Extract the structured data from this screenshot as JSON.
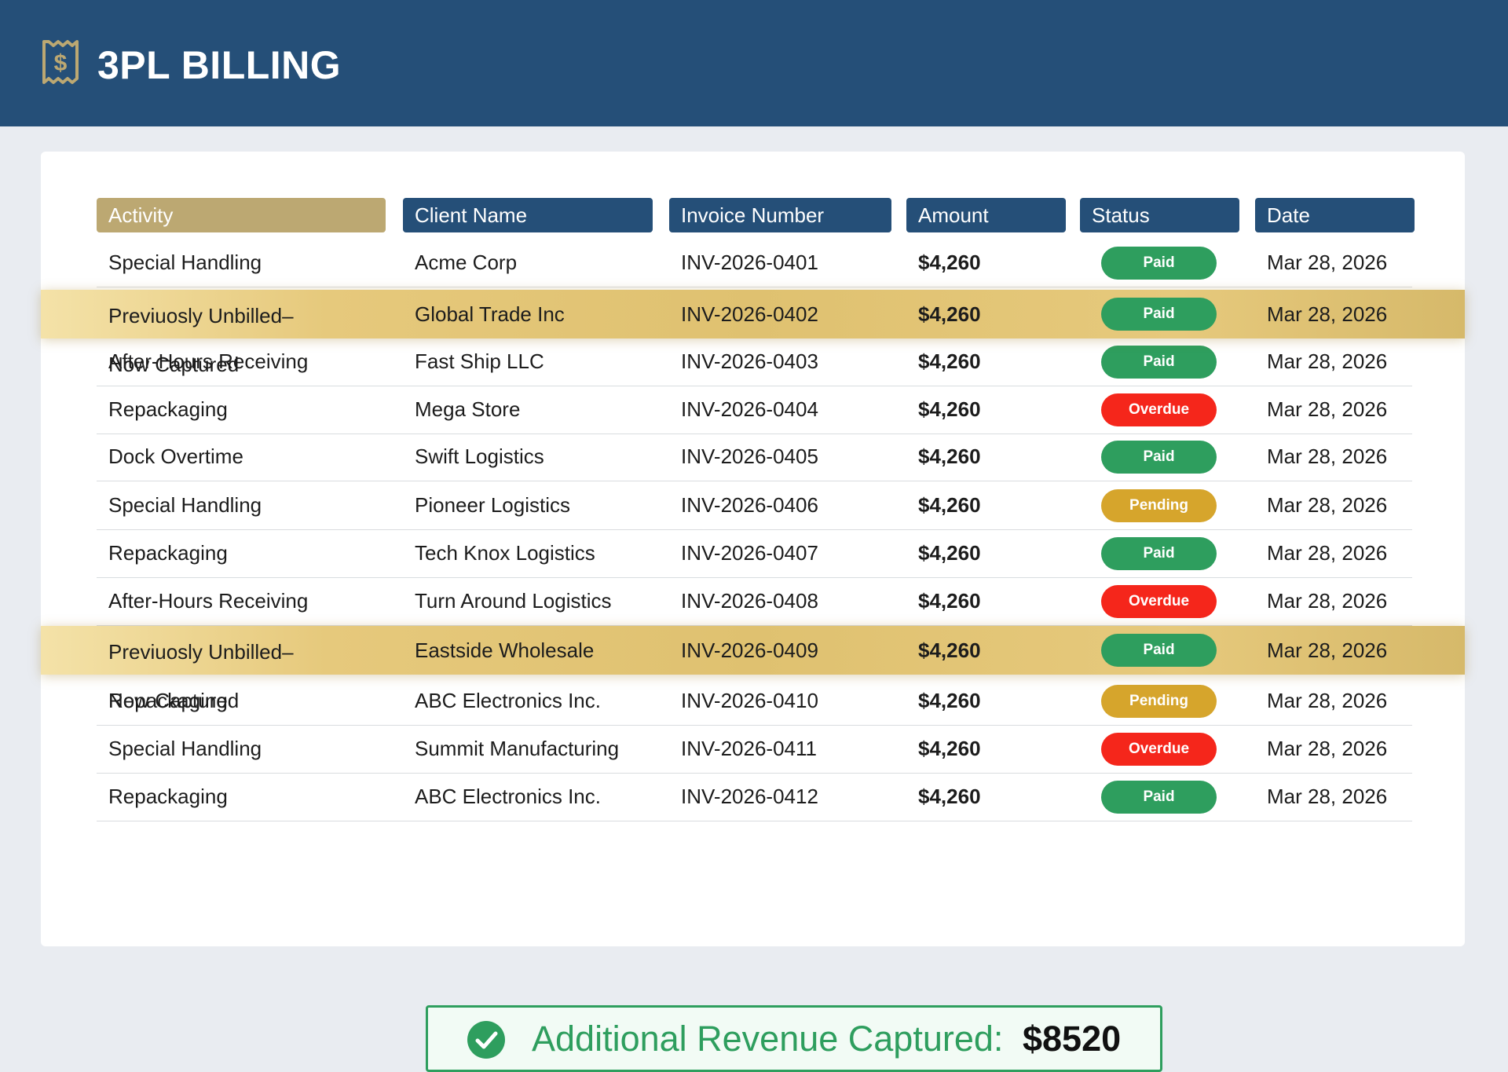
{
  "app": {
    "title": "3PL BILLING",
    "icon": "receipt-dollar-icon"
  },
  "colors": {
    "header_bg": "#254f78",
    "activity_header_bg": "#bca872",
    "highlight_gold": "#dfc170",
    "paid": "#2e9e5e",
    "overdue": "#f5261b",
    "pending": "#d6a52c"
  },
  "table": {
    "headers": [
      "Activity",
      "Client Name",
      "Invoice Number",
      "Amount",
      "Status",
      "Date"
    ],
    "rows": [
      {
        "activity": [
          "Special Handling"
        ],
        "client": "Acme Corp",
        "invoice": "INV-2026-0401",
        "amount": "$4,260",
        "status": "Paid",
        "date": "Mar 28, 2026",
        "highlighted": false
      },
      {
        "activity": [
          "Previuosly Unbilled–",
          "Now Captured"
        ],
        "client": "Global Trade Inc",
        "invoice": "INV-2026-0402",
        "amount": "$4,260",
        "status": "Paid",
        "date": "Mar 28, 2026",
        "highlighted": true
      },
      {
        "activity": [
          "After-Hours Receiving"
        ],
        "client": "Fast Ship LLC",
        "invoice": "INV-2026-0403",
        "amount": "$4,260",
        "status": "Paid",
        "date": "Mar 28, 2026",
        "highlighted": false
      },
      {
        "activity": [
          "Repackaging"
        ],
        "client": "Mega Store",
        "invoice": "INV-2026-0404",
        "amount": "$4,260",
        "status": "Overdue",
        "date": "Mar 28, 2026",
        "highlighted": false
      },
      {
        "activity": [
          "Dock Overtime"
        ],
        "client": "Swift Logistics",
        "invoice": "INV-2026-0405",
        "amount": "$4,260",
        "status": "Paid",
        "date": "Mar 28, 2026",
        "highlighted": false
      },
      {
        "activity": [
          "Special Handling"
        ],
        "client": "Pioneer Logistics",
        "invoice": "INV-2026-0406",
        "amount": "$4,260",
        "status": "Pending",
        "date": "Mar 28, 2026",
        "highlighted": false
      },
      {
        "activity": [
          "Repackaging"
        ],
        "client": "Tech Knox Logistics",
        "invoice": "INV-2026-0407",
        "amount": "$4,260",
        "status": "Paid",
        "date": "Mar 28, 2026",
        "highlighted": false
      },
      {
        "activity": [
          "After-Hours Receiving"
        ],
        "client": "Turn Around Logistics",
        "invoice": "INV-2026-0408",
        "amount": "$4,260",
        "status": "Overdue",
        "date": "Mar 28, 2026",
        "highlighted": false
      },
      {
        "activity": [
          "Previuosly Unbilled–",
          "Now Captured"
        ],
        "client": "Eastside Wholesale",
        "invoice": "INV-2026-0409",
        "amount": "$4,260",
        "status": "Paid",
        "date": "Mar 28, 2026",
        "highlighted": true
      },
      {
        "activity": [
          "Repackaging"
        ],
        "client": "ABC Electronics Inc.",
        "invoice": "INV-2026-0410",
        "amount": "$4,260",
        "status": "Pending",
        "date": "Mar 28, 2026",
        "highlighted": false
      },
      {
        "activity": [
          "Special Handling"
        ],
        "client": "Summit Manufacturing",
        "invoice": "INV-2026-0411",
        "amount": "$4,260",
        "status": "Overdue",
        "date": "Mar 28, 2026",
        "highlighted": false
      },
      {
        "activity": [
          "Repackaging"
        ],
        "client": "ABC Electronics Inc.",
        "invoice": "INV-2026-0412",
        "amount": "$4,260",
        "status": "Paid",
        "date": "Mar 28, 2026",
        "highlighted": false
      }
    ]
  },
  "summary": {
    "icon": "check-circle-icon",
    "label": "Additional Revenue Captured:",
    "value": "$8520"
  }
}
